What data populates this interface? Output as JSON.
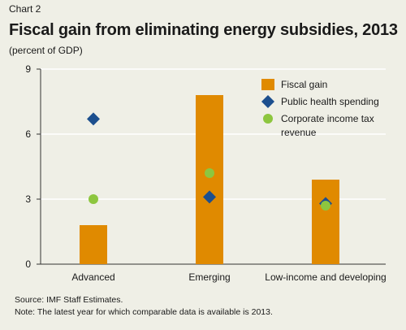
{
  "header": {
    "chart_label": "Chart 2",
    "title": "Fiscal gain from eliminating energy subsidies, 2013",
    "subtitle": "(percent of GDP)"
  },
  "footer": {
    "source": "Source: IMF Staff Estimates.",
    "note": "Note: The latest year for which comparable data is available is 2013."
  },
  "colors": {
    "fiscal_gain": "#e08a00",
    "public_health": "#1c4f8e",
    "corporate_tax": "#8dc63f",
    "gridline": "#ffffff",
    "axis": "#333333",
    "background": "#efefe6"
  },
  "chart_data": {
    "type": "bar",
    "title": "Fiscal gain from eliminating energy subsidies, 2013",
    "ylabel": "(percent of GDP)",
    "categories": [
      "Advanced",
      "Emerging",
      "Low-income and developing"
    ],
    "ylim": [
      0,
      9
    ],
    "yticks": [
      0,
      3,
      6,
      9
    ],
    "grid": true,
    "legend_position": "top-right",
    "series": [
      {
        "name": "Fiscal gain",
        "mark": "bar",
        "color": "#e08a00",
        "values": [
          1.8,
          7.8,
          3.9
        ]
      },
      {
        "name": "Public health spending",
        "mark": "diamond",
        "color": "#1c4f8e",
        "values": [
          6.7,
          3.1,
          2.8
        ]
      },
      {
        "name": "Corporate income tax revenue",
        "legend_lines": [
          "Corporate income tax",
          "revenue"
        ],
        "mark": "circle",
        "color": "#8dc63f",
        "values": [
          3.0,
          4.2,
          2.7
        ]
      }
    ]
  }
}
